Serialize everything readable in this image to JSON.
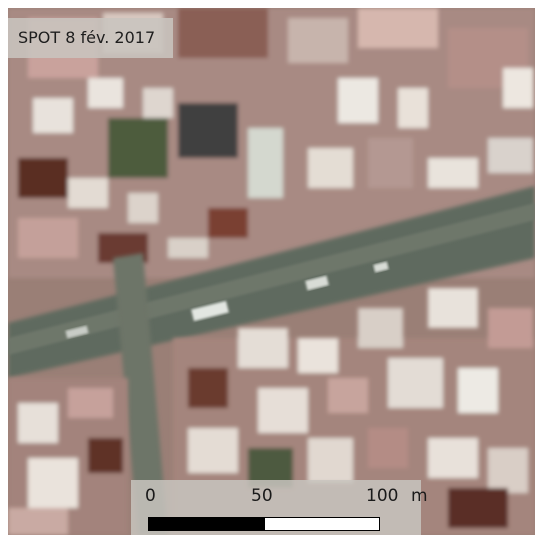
{
  "image_label": {
    "text": "SPOT 8 fév. 2017"
  },
  "scale_bar": {
    "ticks": [
      "0",
      "50",
      "100"
    ],
    "unit": "m",
    "segments": [
      {
        "color": "#000000"
      },
      {
        "color": "#ffffff"
      }
    ]
  },
  "imagery": {
    "palette": {
      "building_light": "#e6ddd6",
      "building_pink": "#c89d96",
      "shadow_brown": "#5a2f24",
      "vegetation": "#4b5a3a",
      "road_grey": "#5f6a5e",
      "road_marking": "#d8dcd6"
    }
  }
}
